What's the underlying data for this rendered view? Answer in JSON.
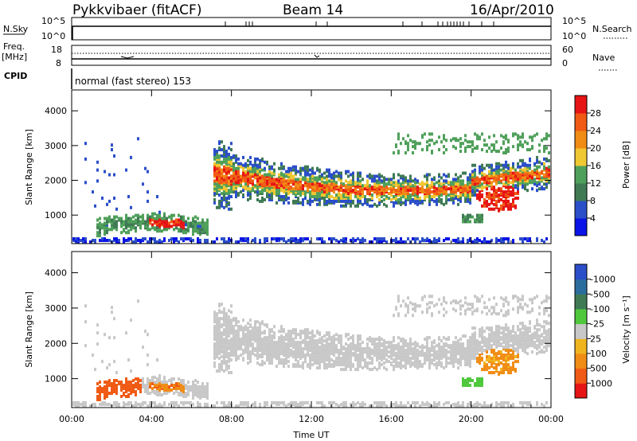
{
  "header": {
    "radar": "Pykkvibaer (fitACF)",
    "beam": "Beam 14",
    "date": "16/Apr/2010"
  },
  "nsky_panel": {
    "left_label": "N.Sky",
    "left_ticks": [
      "10^5",
      "10^0"
    ],
    "right_label": "N.Search",
    "right_ticks": [
      "10^5",
      "10^0"
    ]
  },
  "freq_panel": {
    "left_label_1": "Freq.",
    "left_label_2": "[MHz]",
    "left_ticks": [
      "18",
      "8"
    ],
    "right_label": "Nave",
    "right_ticks": [
      "60",
      "0"
    ]
  },
  "cpid_panel": {
    "label": "CPID",
    "mode_text": "normal (fast stereo) 153"
  },
  "colors": {
    "power": [
      "#0a14e6",
      "#2b4ec9",
      "#3f7a55",
      "#4fa05a",
      "#f0c832",
      "#f08c14",
      "#f05a14",
      "#e61414"
    ],
    "velocity": [
      "#e61414",
      "#f05a14",
      "#f08c14",
      "#f0b41e",
      "#c8c8c8",
      "#4fc83c",
      "#3f7a55",
      "#2b6e9e",
      "#2b4ec9"
    ]
  },
  "chart_data": [
    {
      "type": "heatmap",
      "name": "Power",
      "ylabel": "Slant Range [km]",
      "ylim": [
        180,
        4600
      ],
      "yticks": [
        "1000",
        "2000",
        "3000",
        "4000"
      ],
      "xticks": [
        "00:00",
        "04:00",
        "08:00",
        "12:00",
        "16:00",
        "20:00",
        "00:00"
      ],
      "colorbar_label": "Power [dB]",
      "colorbar_ticks": [
        "4",
        "8",
        "12",
        "16",
        "20",
        "24",
        "28"
      ],
      "clim": [
        0,
        32
      ]
    },
    {
      "type": "heatmap",
      "name": "Velocity",
      "ylabel": "Slant Range [km]",
      "ylim": [
        180,
        4600
      ],
      "yticks": [
        "1000",
        "2000",
        "3000",
        "4000"
      ],
      "xticks": [
        "00:00",
        "04:00",
        "08:00",
        "12:00",
        "16:00",
        "20:00",
        "00:00"
      ],
      "xlabel": "Time UT",
      "colorbar_label": "Velocity [m s⁻¹]",
      "colorbar_ticks": [
        "1000",
        "500",
        "100",
        "25",
        "-25",
        "-100",
        "-500",
        "-1000"
      ]
    }
  ]
}
